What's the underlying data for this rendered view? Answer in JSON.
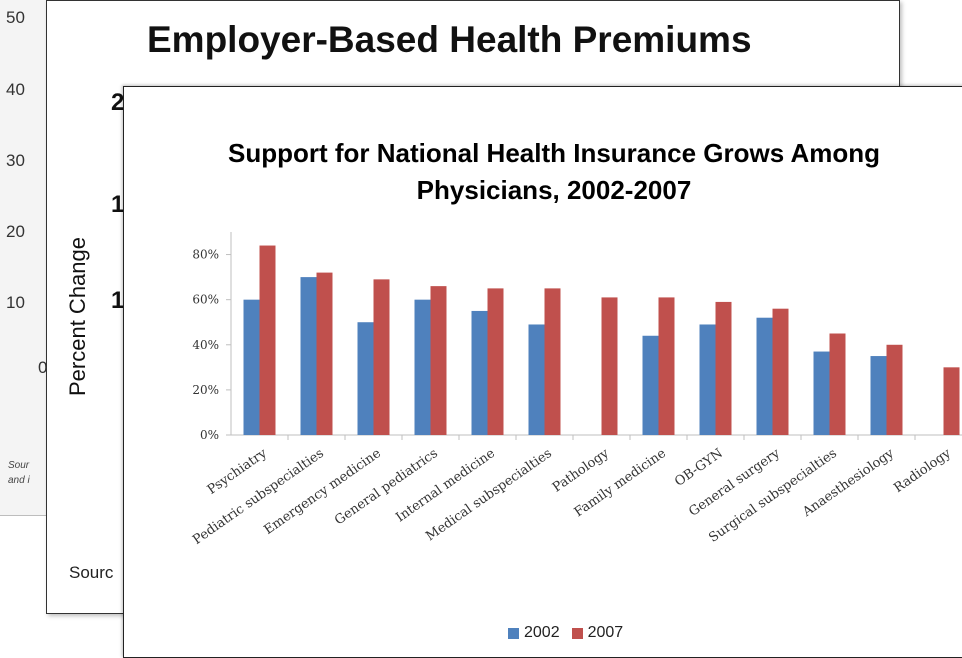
{
  "back_slide": {
    "ticks": [
      "50",
      "40",
      "30",
      "20",
      "10",
      "0"
    ],
    "source_line1": "Sour",
    "source_line2": "and i"
  },
  "mid_slide": {
    "title": "Employer-Based Health Premiums",
    "ylabel": "Percent Change",
    "fragments": [
      "2",
      "1",
      "1"
    ],
    "source": "Sourc"
  },
  "colors": {
    "s2002": "#4F81BD",
    "s2007": "#C0504D",
    "axis": "#bfbfbf"
  },
  "chart_data": {
    "type": "bar",
    "title": "Support for National Health Insurance Grows Among Physicians, 2002-2007",
    "title_line1": "Support for National Health Insurance Grows Among",
    "title_line2": "Physicians, 2002-2007",
    "categories": [
      "Psychiatry",
      "Pediatric subspecialties",
      "Emergency medicine",
      "General pediatrics",
      "Internal medicine",
      "Medical subspecialties",
      "Pathology",
      "Family medicine",
      "OB-GYN",
      "General surgery",
      "Surgical subspecialties",
      "Anaesthesiology",
      "Radiology"
    ],
    "series": [
      {
        "name": "2002",
        "values": [
          60,
          70,
          50,
          60,
          55,
          49,
          null,
          44,
          49,
          52,
          37,
          35,
          null
        ]
      },
      {
        "name": "2007",
        "values": [
          84,
          72,
          69,
          66,
          65,
          65,
          61,
          61,
          59,
          56,
          45,
          40,
          30
        ]
      }
    ],
    "yticks": [
      "0%",
      "20%",
      "40%",
      "60%",
      "80%"
    ],
    "ylim": [
      0,
      90
    ],
    "legend_position": "bottom",
    "grid": false
  }
}
